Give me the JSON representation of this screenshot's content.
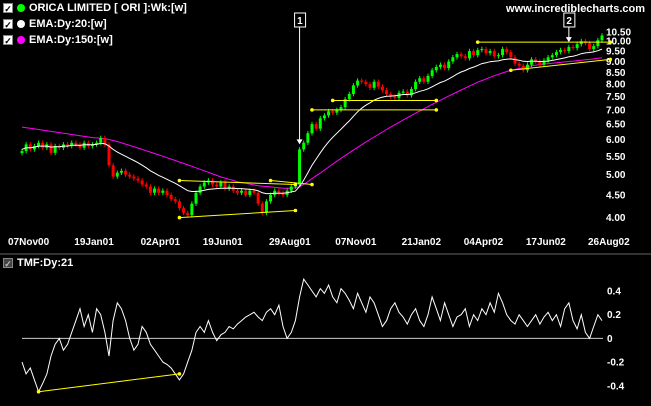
{
  "colors": {
    "background": "#000000",
    "price_up": "#00ff00",
    "price_down": "#ff0000",
    "ema20": "#ffffff",
    "ema150": "#ff00ff",
    "trendline": "#ffff00",
    "tmf": "#ffffff",
    "text": "#ffffff"
  },
  "header": {
    "site": "www.incrediblecharts.com"
  },
  "legend": {
    "price": {
      "label": "ORICA LIMITED [ ORI ]:Wk:[w]",
      "color": "#00ff00",
      "icon": "checkbox-icon"
    },
    "ema20": {
      "label": "EMA:Dy:20:[w]",
      "color": "#ffffff",
      "icon": "checkbox-icon"
    },
    "ema150": {
      "label": "EMA:Dy:150:[w]",
      "color": "#ff00ff",
      "icon": "checkbox-icon"
    },
    "tmf": {
      "label": "TMF:Dy:21",
      "color": "#ffffff",
      "icon": "checkbox-icon"
    }
  },
  "markers": [
    "1",
    "2"
  ],
  "chart_data": [
    {
      "type": "candlestick",
      "scale": "log",
      "x_ticks": [
        "07Nov00",
        "19Jan01",
        "02Apr01",
        "19Jun01",
        "29Aug01",
        "07Nov01",
        "21Jan02",
        "04Apr02",
        "17Jun02",
        "26Aug02"
      ],
      "y_ticks": [
        "10.50",
        "10.00",
        "9.50",
        "9.00",
        "8.50",
        "8.00",
        "7.50",
        "7.00",
        "6.50",
        "6.00",
        "5.50",
        "5.00",
        "4.50",
        "4.00"
      ],
      "ylim": [
        3.75,
        10.6
      ],
      "close": [
        5.65,
        5.85,
        5.7,
        5.8,
        5.9,
        5.75,
        5.85,
        5.6,
        5.8,
        5.75,
        5.85,
        5.8,
        5.9,
        5.85,
        5.75,
        5.9,
        5.8,
        5.85,
        5.9,
        6.05,
        5.85,
        5.25,
        4.95,
        5.05,
        5.1,
        5.0,
        4.95,
        4.9,
        4.85,
        4.75,
        4.7,
        4.55,
        4.65,
        4.55,
        4.6,
        4.5,
        4.4,
        4.35,
        4.2,
        4.1,
        4.05,
        4.3,
        4.55,
        4.7,
        4.8,
        4.85,
        4.75,
        4.7,
        4.8,
        4.65,
        4.7,
        4.6,
        4.55,
        4.6,
        4.5,
        4.6,
        4.55,
        4.3,
        4.1,
        4.35,
        4.5,
        4.6,
        4.55,
        4.5,
        4.6,
        4.7,
        4.75,
        5.7,
        5.9,
        6.2,
        6.5,
        6.35,
        6.7,
        6.8,
        6.95,
        6.9,
        7.0,
        7.1,
        7.4,
        7.6,
        7.95,
        8.15,
        8.1,
        8.0,
        7.85,
        8.1,
        7.9,
        7.75,
        7.6,
        7.5,
        7.45,
        7.65,
        7.7,
        7.55,
        7.8,
        8.1,
        8.25,
        8.1,
        8.35,
        8.6,
        8.75,
        8.85,
        8.7,
        9.0,
        9.2,
        9.35,
        9.25,
        9.15,
        9.5,
        9.3,
        9.55,
        9.6,
        9.4,
        9.5,
        9.25,
        9.3,
        9.6,
        9.45,
        9.2,
        8.9,
        8.8,
        8.6,
        8.85,
        9.1,
        9.0,
        8.85,
        9.05,
        9.2,
        9.3,
        9.45,
        9.55,
        9.5,
        9.7,
        9.65,
        9.85,
        10.0,
        9.9,
        9.6,
        9.75,
        10.05,
        10.3
      ],
      "series": [
        {
          "name": "EMA:Dy:20:[w]",
          "values": [
            5.7,
            5.75,
            5.75,
            5.77,
            5.8,
            5.8,
            5.8,
            5.77,
            5.78,
            5.78,
            5.8,
            5.8,
            5.82,
            5.83,
            5.82,
            5.84,
            5.84,
            5.84,
            5.85,
            5.88,
            5.87,
            5.8,
            5.7,
            5.62,
            5.56,
            5.5,
            5.44,
            5.38,
            5.32,
            5.25,
            5.18,
            5.1,
            5.04,
            4.98,
            4.93,
            4.88,
            4.83,
            4.78,
            4.72,
            4.66,
            4.6,
            4.58,
            4.58,
            4.59,
            4.61,
            4.63,
            4.64,
            4.65,
            4.66,
            4.66,
            4.66,
            4.66,
            4.65,
            4.65,
            4.64,
            4.63,
            4.62,
            4.6,
            4.55,
            4.53,
            4.53,
            4.54,
            4.54,
            4.54,
            4.55,
            4.57,
            4.59,
            4.7,
            4.86,
            5.05,
            5.25,
            5.42,
            5.6,
            5.77,
            5.93,
            6.07,
            6.2,
            6.33,
            6.47,
            6.61,
            6.77,
            6.93,
            7.06,
            7.17,
            7.26,
            7.36,
            7.43,
            7.48,
            7.51,
            7.52,
            7.53,
            7.55,
            7.58,
            7.58,
            7.6,
            7.65,
            7.71,
            7.75,
            7.81,
            7.89,
            7.98,
            8.07,
            8.13,
            8.22,
            8.32,
            8.43,
            8.52,
            8.59,
            8.68,
            8.74,
            8.82,
            8.9,
            8.94,
            8.99,
            9.01,
            9.03,
            9.08,
            9.11,
            9.12,
            9.09,
            9.06,
            9.01,
            9.0,
            9.01,
            9.01,
            9.0,
            9.0,
            9.02,
            9.05,
            9.09,
            9.13,
            9.17,
            9.22,
            9.25,
            9.3,
            9.37,
            9.41,
            9.43,
            9.46,
            9.52,
            9.6
          ]
        },
        {
          "name": "EMA:Dy:150:[w]",
          "values": [
            6.4,
            6.38,
            6.36,
            6.34,
            6.32,
            6.3,
            6.28,
            6.26,
            6.24,
            6.22,
            6.2,
            6.18,
            6.16,
            6.14,
            6.12,
            6.1,
            6.08,
            6.06,
            6.05,
            6.04,
            6.03,
            6.0,
            5.97,
            5.94,
            5.9,
            5.86,
            5.82,
            5.78,
            5.74,
            5.7,
            5.66,
            5.62,
            5.58,
            5.54,
            5.5,
            5.46,
            5.42,
            5.38,
            5.34,
            5.3,
            5.26,
            5.22,
            5.18,
            5.14,
            5.1,
            5.06,
            5.02,
            4.98,
            4.94,
            4.91,
            4.88,
            4.85,
            4.82,
            4.8,
            4.78,
            4.76,
            4.74,
            4.72,
            4.71,
            4.7,
            4.69,
            4.68,
            4.67,
            4.66,
            4.66,
            4.66,
            4.67,
            4.7,
            4.75,
            4.82,
            4.9,
            4.97,
            5.04,
            5.12,
            5.2,
            5.28,
            5.36,
            5.44,
            5.52,
            5.6,
            5.68,
            5.76,
            5.84,
            5.92,
            6.0,
            6.08,
            6.16,
            6.24,
            6.32,
            6.4,
            6.48,
            6.56,
            6.64,
            6.72,
            6.8,
            6.88,
            6.96,
            7.04,
            7.12,
            7.2,
            7.28,
            7.36,
            7.44,
            7.52,
            7.6,
            7.68,
            7.76,
            7.84,
            7.92,
            8.0,
            8.08,
            8.15,
            8.22,
            8.29,
            8.36,
            8.42,
            8.48,
            8.54,
            8.6,
            8.64,
            8.68,
            8.72,
            8.76,
            8.8,
            8.83,
            8.86,
            8.88,
            8.9,
            8.92,
            8.94,
            8.96,
            8.98,
            9.0,
            9.02,
            9.04,
            9.06,
            9.08,
            9.1,
            9.12,
            9.15,
            9.18
          ]
        }
      ],
      "annotations": [
        {
          "label": "1",
          "x_index": 67,
          "type": "arrow"
        },
        {
          "label": "2",
          "x_index": 132,
          "type": "arrow"
        }
      ],
      "trendlines": [
        {
          "from": [
            38,
            4.0
          ],
          "to": [
            66,
            4.15
          ]
        },
        {
          "from": [
            38,
            4.85
          ],
          "to": [
            66,
            4.75
          ]
        },
        {
          "from": [
            60,
            4.85
          ],
          "to": [
            70,
            4.75
          ]
        },
        {
          "from": [
            75,
            7.35
          ],
          "to": [
            100,
            7.35
          ]
        },
        {
          "from": [
            70,
            7.0
          ],
          "to": [
            100,
            7.0
          ]
        },
        {
          "from": [
            110,
            9.95
          ],
          "to": [
            142,
            9.95
          ]
        },
        {
          "from": [
            118,
            8.6
          ],
          "to": [
            142,
            9.1
          ]
        }
      ]
    },
    {
      "type": "line",
      "name": "TMF:Dy:21",
      "y_ticks": [
        "0.4",
        "0.2",
        "0",
        "-0.2",
        "-0.4"
      ],
      "ylim": [
        -0.52,
        0.56
      ],
      "zero_line": true,
      "values": [
        -0.2,
        -0.3,
        -0.25,
        -0.35,
        -0.45,
        -0.38,
        -0.3,
        -0.15,
        -0.05,
        0.0,
        -0.1,
        -0.05,
        0.05,
        0.15,
        0.25,
        0.1,
        0.2,
        0.05,
        0.25,
        0.2,
        0.05,
        -0.15,
        0.15,
        0.3,
        0.25,
        0.15,
        0.0,
        -0.1,
        -0.05,
        0.1,
        0.05,
        -0.05,
        -0.1,
        -0.15,
        -0.2,
        -0.22,
        -0.25,
        -0.3,
        -0.35,
        -0.3,
        -0.2,
        -0.1,
        0.05,
        0.1,
        0.05,
        0.15,
        0.05,
        -0.02,
        0.03,
        0.05,
        0.1,
        0.08,
        0.12,
        0.15,
        0.18,
        0.2,
        0.22,
        0.18,
        0.15,
        0.22,
        0.25,
        0.2,
        0.28,
        0.1,
        0.0,
        0.05,
        0.15,
        0.35,
        0.5,
        0.45,
        0.4,
        0.35,
        0.42,
        0.38,
        0.45,
        0.35,
        0.3,
        0.42,
        0.38,
        0.32,
        0.25,
        0.38,
        0.3,
        0.22,
        0.35,
        0.3,
        0.2,
        0.1,
        0.15,
        0.25,
        0.3,
        0.22,
        0.18,
        0.12,
        0.2,
        0.25,
        0.15,
        0.1,
        0.2,
        0.35,
        0.25,
        0.15,
        0.3,
        0.2,
        0.1,
        0.18,
        0.2,
        0.25,
        0.1,
        0.2,
        0.15,
        0.25,
        0.2,
        0.3,
        0.22,
        0.38,
        0.3,
        0.2,
        0.15,
        0.12,
        0.2,
        0.15,
        0.1,
        0.15,
        0.2,
        0.12,
        0.18,
        0.22,
        0.15,
        0.2,
        0.1,
        0.25,
        0.3,
        0.15,
        0.08,
        0.2,
        0.05,
        0.0,
        0.1,
        0.2,
        0.15
      ],
      "trendlines": [
        {
          "from": [
            4,
            -0.45
          ],
          "to": [
            38,
            -0.3
          ]
        }
      ]
    }
  ]
}
